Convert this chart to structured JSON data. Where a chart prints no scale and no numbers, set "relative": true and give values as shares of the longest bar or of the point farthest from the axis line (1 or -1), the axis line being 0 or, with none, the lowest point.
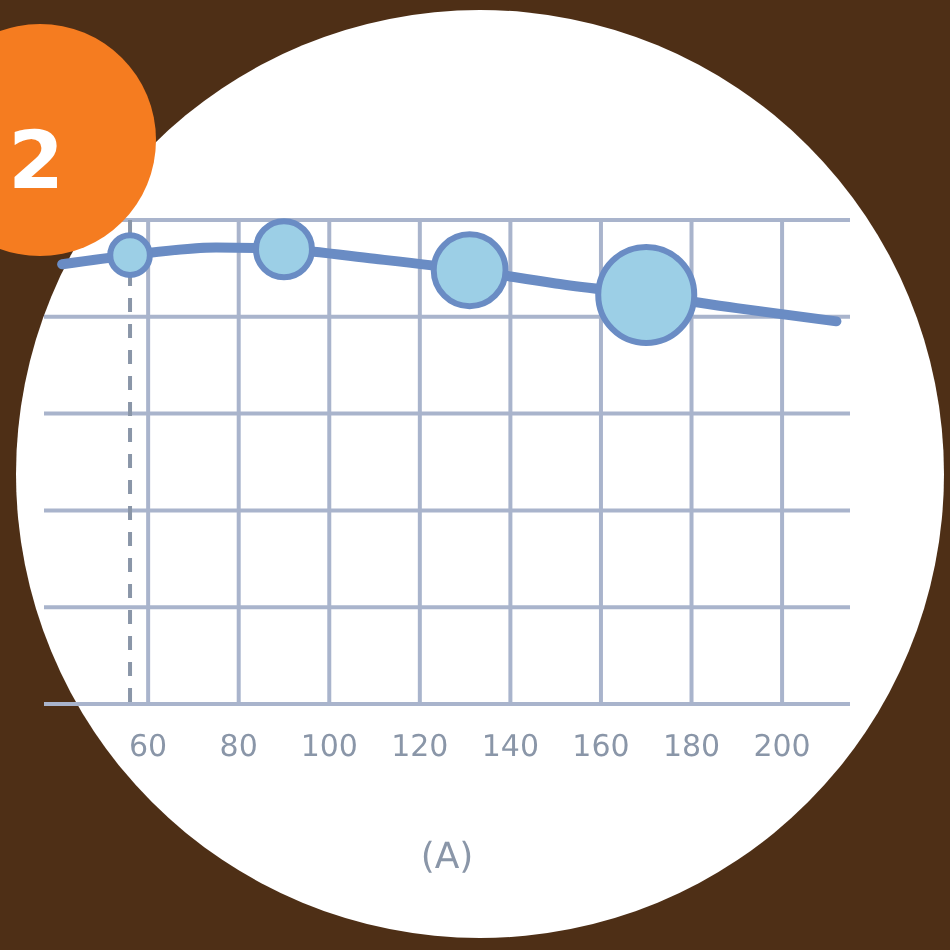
{
  "chart_data": {
    "type": "line",
    "relative": true,
    "xlabel": "(A)",
    "xlim": [
      37,
      215
    ],
    "xticks": [
      60,
      80,
      100,
      120,
      140,
      160,
      180,
      200
    ],
    "grid": true,
    "annotations": [
      "2"
    ],
    "ref_lines": [
      {
        "axis": "x",
        "value": 56,
        "line_style": "dashed",
        "color": "#8a96a8"
      }
    ],
    "series": [
      {
        "color": "#6a8cc4",
        "x": [
          41,
          56,
          75,
          90,
          110,
          131,
          150,
          170,
          190,
          212
        ],
        "values": [
          0.963,
          0.983,
          1,
          0.996,
          0.975,
          0.95,
          0.921,
          0.896,
          0.867,
          0.838
        ]
      },
      {
        "type": "bubble",
        "color": "#9ccfe6",
        "x": [
          56,
          90,
          131,
          170
        ],
        "values": [
          0.983,
          0.996,
          0.95,
          0.896
        ],
        "sizes": [
          0.17,
          0.34,
          0.56,
          1
        ]
      }
    ]
  }
}
